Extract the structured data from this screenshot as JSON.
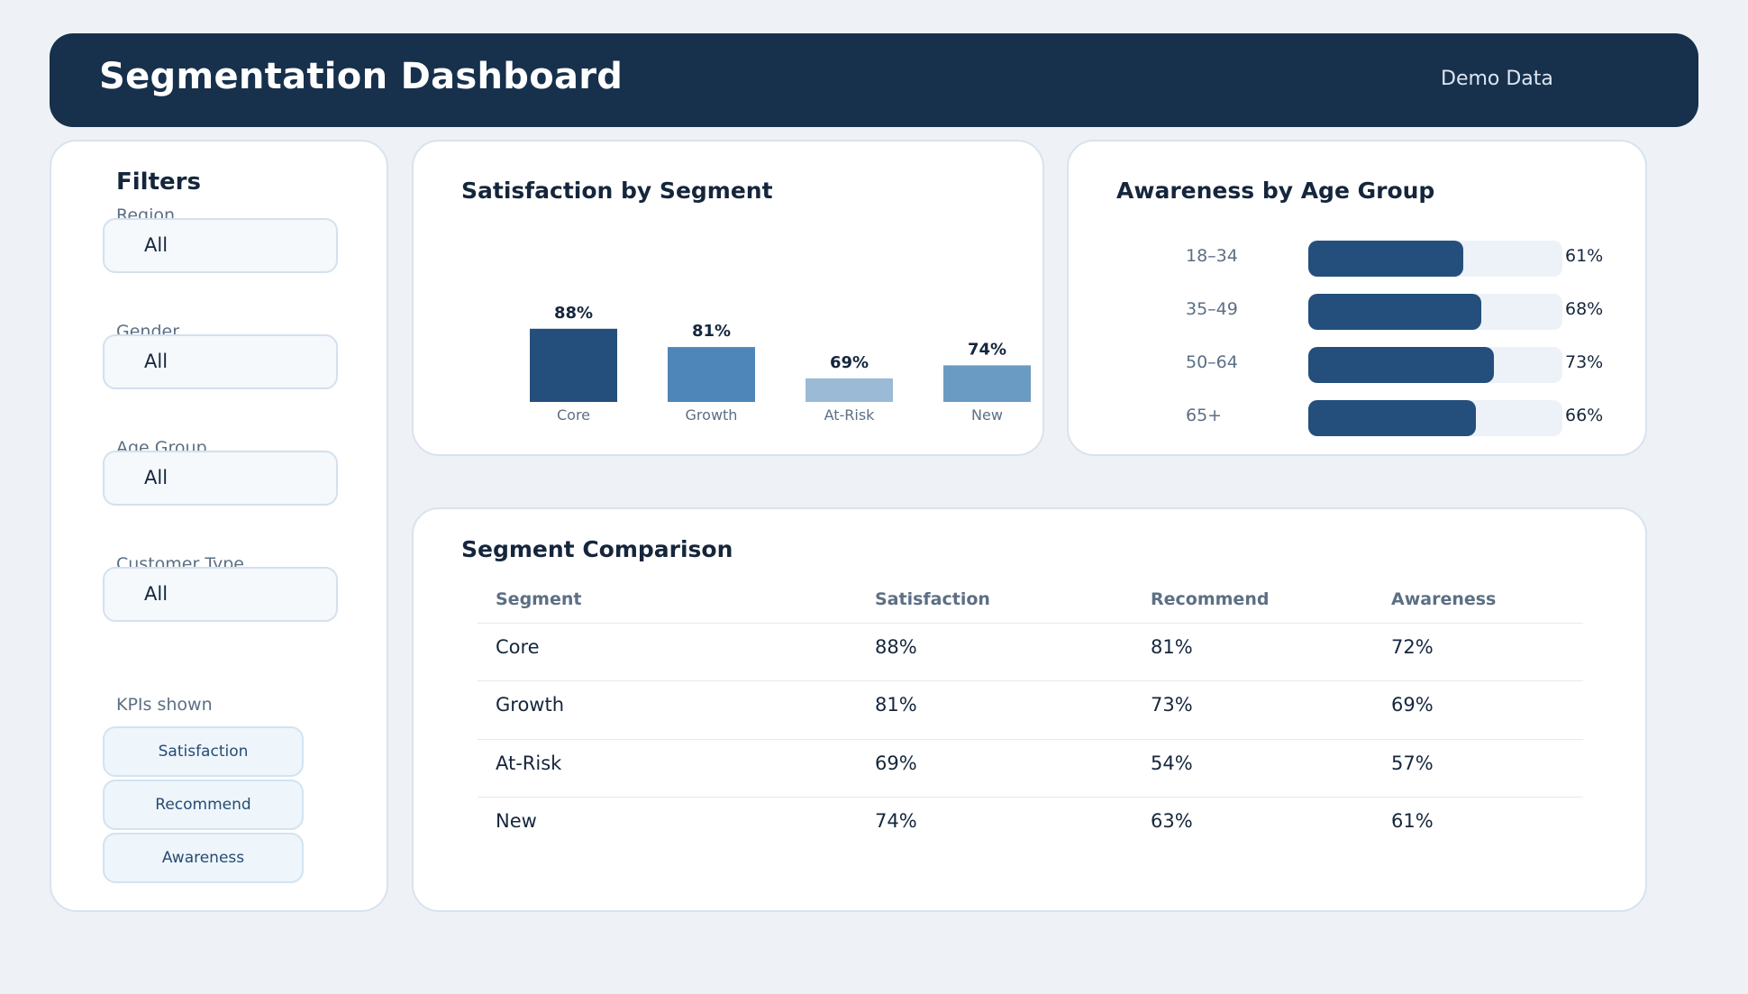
{
  "header": {
    "title": "Segmentation Dashboard",
    "badge": "Demo Data"
  },
  "filters": {
    "title": "Filters",
    "fields": [
      {
        "label": "Region",
        "value": "All"
      },
      {
        "label": "Gender",
        "value": "All"
      },
      {
        "label": "Age Group",
        "value": "All"
      },
      {
        "label": "Customer Type",
        "value": "All"
      }
    ],
    "kpi_label": "KPIs shown",
    "kpis": [
      "Satisfaction",
      "Recommend",
      "Awareness"
    ]
  },
  "satisfaction": {
    "title": "Satisfaction by Segment"
  },
  "awareness": {
    "title": "Awareness by Age Group",
    "rows": [
      {
        "label": "18–34",
        "value": 61,
        "display": "61%"
      },
      {
        "label": "35–49",
        "value": 68,
        "display": "68%"
      },
      {
        "label": "50–64",
        "value": 73,
        "display": "73%"
      },
      {
        "label": "65+",
        "value": 66,
        "display": "66%"
      }
    ]
  },
  "table": {
    "title": "Segment Comparison",
    "headers": [
      "Segment",
      "Satisfaction",
      "Recommend",
      "Awareness"
    ],
    "rows": [
      [
        "Core",
        "88%",
        "81%",
        "72%"
      ],
      [
        "Growth",
        "81%",
        "73%",
        "69%"
      ],
      [
        "At-Risk",
        "69%",
        "54%",
        "57%"
      ],
      [
        "New",
        "74%",
        "63%",
        "61%"
      ]
    ]
  },
  "colors": {
    "header_bg": "#17304c",
    "primary": "#244f7c",
    "track": "#edf2f8"
  },
  "chart_data": {
    "type": "bar",
    "title": "Satisfaction by Segment",
    "categories": [
      "Core",
      "Growth",
      "At-Risk",
      "New"
    ],
    "values": [
      88,
      81,
      69,
      74
    ],
    "labels": [
      "88%",
      "81%",
      "69%",
      "74%"
    ],
    "colors": [
      "#244f7c",
      "#4f86b9",
      "#9abad5",
      "#6a9bc3"
    ],
    "ylim": [
      60,
      95
    ],
    "xlabel": "",
    "ylabel": "",
    "grid": false,
    "legend": "none"
  }
}
